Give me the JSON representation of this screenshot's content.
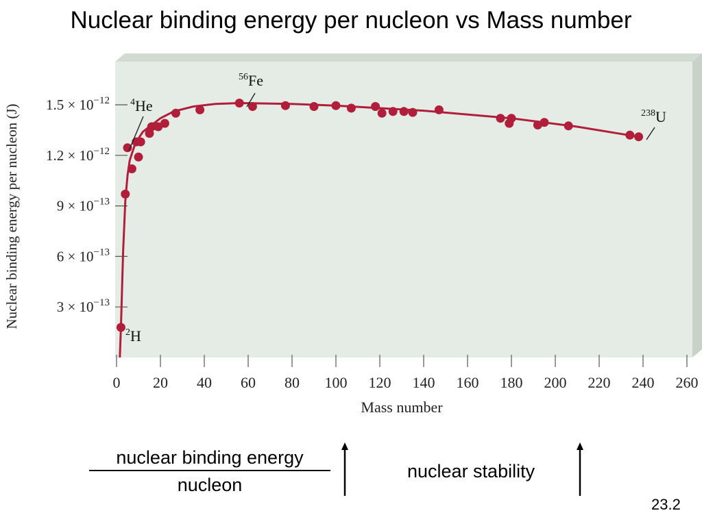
{
  "slide": {
    "title": "Nuclear binding energy per nucleon vs Mass number",
    "fraction_numerator": "nuclear binding energy",
    "fraction_denominator": "nucleon",
    "stability_label": "nuclear stability",
    "slide_number": "23.2"
  },
  "chart_data": {
    "type": "scatter",
    "title": "",
    "xlabel": "Mass number",
    "ylabel": "Nuclear binding energy per nucleon (J)",
    "xlim": [
      0,
      260
    ],
    "ylim": [
      0,
      1.75e-12
    ],
    "grid": false,
    "x_ticks": [
      "0",
      "20",
      "40",
      "60",
      "80",
      "100",
      "120",
      "140",
      "160",
      "180",
      "200",
      "220",
      "240",
      "260"
    ],
    "y_ticks": [
      {
        "value": 3e-13,
        "mantissa": "3",
        "exp": "−13"
      },
      {
        "value": 6e-13,
        "mantissa": "6",
        "exp": "−13"
      },
      {
        "value": 9e-13,
        "mantissa": "9",
        "exp": "−13"
      },
      {
        "value": 1.2e-12,
        "mantissa": "1.2",
        "exp": "−12"
      },
      {
        "value": 1.5e-12,
        "mantissa": "1.5",
        "exp": "−12"
      }
    ],
    "series": [
      {
        "points": [
          [
            2,
            1.79e-13
          ],
          [
            4,
            9.7e-13
          ],
          [
            5,
            1.245e-12
          ],
          [
            7,
            1.12e-12
          ],
          [
            9,
            1.28e-12
          ],
          [
            10,
            1.19e-12
          ],
          [
            11,
            1.28e-12
          ],
          [
            15,
            1.33e-12
          ],
          [
            16,
            1.37e-12
          ],
          [
            19,
            1.37e-12
          ],
          [
            22,
            1.39e-12
          ],
          [
            27,
            1.45e-12
          ],
          [
            38,
            1.47e-12
          ],
          [
            56,
            1.51e-12
          ],
          [
            62,
            1.49e-12
          ],
          [
            77,
            1.495e-12
          ],
          [
            90,
            1.49e-12
          ],
          [
            100,
            1.495e-12
          ],
          [
            107,
            1.48e-12
          ],
          [
            118,
            1.49e-12
          ],
          [
            121,
            1.45e-12
          ],
          [
            126,
            1.46e-12
          ],
          [
            131,
            1.46e-12
          ],
          [
            135,
            1.455e-12
          ],
          [
            147,
            1.47e-12
          ],
          [
            175,
            1.42e-12
          ],
          [
            179,
            1.39e-12
          ],
          [
            180,
            1.42e-12
          ],
          [
            192,
            1.38e-12
          ],
          [
            195,
            1.395e-12
          ],
          [
            206,
            1.375e-12
          ],
          [
            234,
            1.32e-12
          ],
          [
            238,
            1.31e-12
          ]
        ],
        "color": "#b01e3a"
      }
    ],
    "curve": [
      [
        1.5,
        0
      ],
      [
        2,
        1.79e-13
      ],
      [
        3,
        6.3e-13
      ],
      [
        4,
        9.3e-13
      ],
      [
        5,
        1.08e-12
      ],
      [
        6,
        1.17e-12
      ],
      [
        8,
        1.25e-12
      ],
      [
        10,
        1.3e-12
      ],
      [
        12,
        1.34e-12
      ],
      [
        16,
        1.38e-12
      ],
      [
        20,
        1.42e-12
      ],
      [
        26,
        1.46e-12
      ],
      [
        35,
        1.49e-12
      ],
      [
        45,
        1.505e-12
      ],
      [
        56,
        1.51e-12
      ],
      [
        80,
        1.505e-12
      ],
      [
        100,
        1.495e-12
      ],
      [
        140,
        1.465e-12
      ],
      [
        180,
        1.42e-12
      ],
      [
        210,
        1.37e-12
      ],
      [
        238,
        1.31e-12
      ]
    ],
    "annotations": [
      {
        "mass": "4",
        "symbol": "He",
        "x": 5,
        "y": 1.245e-12
      },
      {
        "mass": "56",
        "symbol": "Fe",
        "x": 56,
        "y": 1.51e-12
      },
      {
        "mass": "238",
        "symbol": "U",
        "x": 238,
        "y": 1.31e-12
      },
      {
        "mass": "2",
        "symbol": "H",
        "x": 2,
        "y": 1.79e-13
      }
    ],
    "colors": {
      "panel": "#e5ebe5",
      "panel_top": "#d2dbd2",
      "panel_side": "#c9d2c9",
      "series": "#b01e3a"
    }
  }
}
